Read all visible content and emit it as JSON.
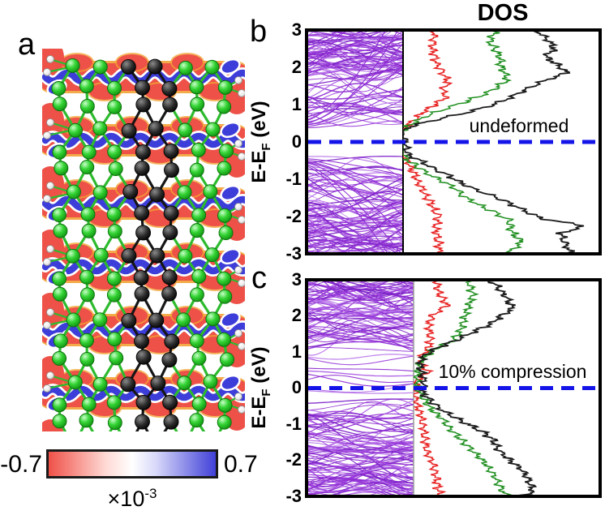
{
  "dos_title": "DOS",
  "panels": {
    "a": {
      "label": "a"
    },
    "b": {
      "label": "b",
      "annotation": "undeformed"
    },
    "c": {
      "label": "c",
      "annotation": "10% compression"
    }
  },
  "axis": {
    "label_main": "E-E",
    "label_sub": "F",
    "label_unit": " (eV)",
    "ticks": [
      "3",
      "2",
      "1",
      "0",
      "-1",
      "-2",
      "-3"
    ]
  },
  "colorbar": {
    "min": "-0.7",
    "max": "0.7",
    "scale_base": "×10",
    "scale_exp": "-3",
    "negative_color": "#ef5148",
    "positive_color": "#4040d8"
  },
  "colors": {
    "band_lines": "#9a2fd6",
    "dos_red": "#e82222",
    "dos_green": "#1f8f1f",
    "dos_black": "#1c1c1c",
    "fermi_line": "#1414e8",
    "frame": "#000000",
    "atom_green": "#2ecc2e",
    "atom_carbon_black": "#111111",
    "atom_hydrogen_white": "#f0f0f0",
    "bond_green": "#2dbb2d",
    "charge_negative_red": "#ed5147",
    "charge_positive_blue": "#4040d8",
    "ribbon_blue": "#3d3dd9",
    "fringe_orange": "#f2a235"
  },
  "chart_data": [
    {
      "panel": "b",
      "type": "line",
      "annotation": "undeformed",
      "subpanels": [
        "band structure (violet lines)",
        "DOS (red, green, black curves)"
      ],
      "ylabel": "E-EF (eV)",
      "ylim": [
        -3,
        3
      ],
      "yticks": [
        3,
        2,
        1,
        0,
        -1,
        -2,
        -3
      ],
      "fermi_energy_ev": 0,
      "fermi_line_style": "blue dashed",
      "band_gap_ev": {
        "valence_max": -0.45,
        "conduction_min": 0.38
      },
      "band_regions": [
        {
          "e_min": 0.38,
          "e_max": 3.05,
          "count": 88,
          "bias": "high"
        },
        {
          "e_min": -3.05,
          "e_max": -0.45,
          "count": 88,
          "bias": "low"
        }
      ],
      "dos_series": [
        {
          "name": "red",
          "color": "#e82222",
          "points": [
            [
              3,
              0.16
            ],
            [
              2.5,
              0.15
            ],
            [
              2.1,
              0.17
            ],
            [
              1.6,
              0.23
            ],
            [
              1.4,
              0.2
            ],
            [
              1.2,
              0.22
            ],
            [
              1.0,
              0.16
            ],
            [
              0.8,
              0.1
            ],
            [
              0.6,
              0.06
            ],
            [
              0.45,
              0.02
            ],
            [
              0.32,
              0.0
            ],
            [
              -0.33,
              0.0
            ],
            [
              -0.5,
              0.02
            ],
            [
              -0.75,
              0.045
            ],
            [
              -1.0,
              0.07
            ],
            [
              -1.3,
              0.1
            ],
            [
              -1.6,
              0.135
            ],
            [
              -2.0,
              0.18
            ],
            [
              -2.3,
              0.165
            ],
            [
              -2.6,
              0.175
            ],
            [
              -3,
              0.19
            ]
          ]
        },
        {
          "name": "green",
          "color": "#1f8f1f",
          "points": [
            [
              3,
              0.47
            ],
            [
              2.7,
              0.44
            ],
            [
              2.3,
              0.49
            ],
            [
              2.0,
              0.5
            ],
            [
              1.7,
              0.53
            ],
            [
              1.5,
              0.49
            ],
            [
              1.3,
              0.42
            ],
            [
              1.1,
              0.33
            ],
            [
              0.9,
              0.22
            ],
            [
              0.7,
              0.12
            ],
            [
              0.5,
              0.05
            ],
            [
              0.35,
              0.01
            ],
            [
              0.3,
              0.0
            ],
            [
              -0.35,
              0.0
            ],
            [
              -0.55,
              0.04
            ],
            [
              -0.8,
              0.11
            ],
            [
              -1.0,
              0.18
            ],
            [
              -1.2,
              0.25
            ],
            [
              -1.5,
              0.32
            ],
            [
              -1.8,
              0.43
            ],
            [
              -2.1,
              0.54
            ],
            [
              -2.4,
              0.55
            ],
            [
              -2.7,
              0.6
            ],
            [
              -3,
              0.53
            ]
          ]
        },
        {
          "name": "black",
          "color": "#1c1c1c",
          "points": [
            [
              3,
              0.68
            ],
            [
              2.7,
              0.74
            ],
            [
              2.5,
              0.77
            ],
            [
              2.3,
              0.72
            ],
            [
              2.0,
              0.8
            ],
            [
              1.85,
              0.83
            ],
            [
              1.6,
              0.7
            ],
            [
              1.4,
              0.62
            ],
            [
              1.2,
              0.55
            ],
            [
              1.0,
              0.46
            ],
            [
              0.8,
              0.33
            ],
            [
              0.6,
              0.17
            ],
            [
              0.45,
              0.06
            ],
            [
              0.32,
              0.0
            ],
            [
              -0.33,
              0.02
            ],
            [
              -0.5,
              0.09
            ],
            [
              -0.7,
              0.15
            ],
            [
              -0.9,
              0.23
            ],
            [
              -1.2,
              0.33
            ],
            [
              -1.5,
              0.48
            ],
            [
              -1.8,
              0.6
            ],
            [
              -2.05,
              0.7
            ],
            [
              -2.25,
              0.92
            ],
            [
              -2.45,
              0.8
            ],
            [
              -2.7,
              0.82
            ],
            [
              -3,
              0.85
            ]
          ]
        }
      ]
    },
    {
      "panel": "c",
      "type": "line",
      "annotation": "10% compression",
      "subpanels": [
        "band structure (violet lines, bands cross the Fermi level)",
        "DOS (red, green, black curves)"
      ],
      "ylabel": "E-EF (eV)",
      "ylim": [
        -3,
        3
      ],
      "yticks": [
        3,
        2,
        1,
        0,
        -1,
        -2,
        -3
      ],
      "fermi_energy_ev": 0,
      "fermi_line_style": "blue dashed",
      "band_gap_ev": null,
      "band_regions": [
        {
          "e_min": 1.0,
          "e_max": 3.05,
          "count": 80,
          "bias": "high"
        },
        {
          "e_min": -3.05,
          "e_max": -0.2,
          "count": 95,
          "bias": "low"
        },
        {
          "e_min": -0.15,
          "e_max": 1.0,
          "count": 9,
          "bias": "mid"
        }
      ],
      "dos_series": [
        {
          "name": "red",
          "color": "#e82222",
          "points": [
            [
              3,
              0.12
            ],
            [
              2.6,
              0.14
            ],
            [
              2.3,
              0.18
            ],
            [
              2.0,
              0.1
            ],
            [
              1.7,
              0.08
            ],
            [
              1.4,
              0.09
            ],
            [
              1.1,
              0.08
            ],
            [
              0.85,
              0.035
            ],
            [
              0.6,
              0.05
            ],
            [
              0.45,
              0.08
            ],
            [
              0.25,
              0.02
            ],
            [
              0.0,
              0.01
            ],
            [
              -0.3,
              0.005
            ],
            [
              -0.6,
              0.03
            ],
            [
              -1.0,
              0.05
            ],
            [
              -1.4,
              0.06
            ],
            [
              -1.8,
              0.075
            ],
            [
              -2.2,
              0.11
            ],
            [
              -2.6,
              0.125
            ],
            [
              -3,
              0.14
            ]
          ]
        },
        {
          "name": "green",
          "color": "#1f8f1f",
          "points": [
            [
              3,
              0.29
            ],
            [
              2.6,
              0.32
            ],
            [
              2.2,
              0.29
            ],
            [
              1.9,
              0.27
            ],
            [
              1.6,
              0.25
            ],
            [
              1.3,
              0.21
            ],
            [
              1.1,
              0.12
            ],
            [
              0.95,
              0.08
            ],
            [
              0.75,
              0.035
            ],
            [
              0.5,
              0.025
            ],
            [
              0.25,
              0.015
            ],
            [
              0.0,
              0.025
            ],
            [
              -0.25,
              0.05
            ],
            [
              -0.55,
              0.09
            ],
            [
              -0.9,
              0.16
            ],
            [
              -1.2,
              0.21
            ],
            [
              -1.5,
              0.27
            ],
            [
              -1.9,
              0.35
            ],
            [
              -2.2,
              0.4
            ],
            [
              -2.5,
              0.44
            ],
            [
              -2.8,
              0.47
            ],
            [
              -3,
              0.5
            ]
          ]
        },
        {
          "name": "black",
          "color": "#1c1c1c",
          "points": [
            [
              3,
              0.41
            ],
            [
              2.75,
              0.46
            ],
            [
              2.5,
              0.5
            ],
            [
              2.2,
              0.53
            ],
            [
              2.0,
              0.47
            ],
            [
              1.8,
              0.42
            ],
            [
              1.6,
              0.34
            ],
            [
              1.35,
              0.24
            ],
            [
              1.1,
              0.12
            ],
            [
              0.85,
              0.045
            ],
            [
              0.6,
              0.035
            ],
            [
              0.35,
              0.05
            ],
            [
              0.1,
              0.055
            ],
            [
              -0.1,
              0.045
            ],
            [
              -0.35,
              0.09
            ],
            [
              -0.6,
              0.15
            ],
            [
              -0.9,
              0.25
            ],
            [
              -1.2,
              0.37
            ],
            [
              -1.45,
              0.43
            ],
            [
              -1.7,
              0.45
            ],
            [
              -2.0,
              0.52
            ],
            [
              -2.3,
              0.59
            ],
            [
              -2.6,
              0.62
            ],
            [
              -2.85,
              0.64
            ],
            [
              -3,
              0.58
            ]
          ]
        }
      ]
    }
  ]
}
